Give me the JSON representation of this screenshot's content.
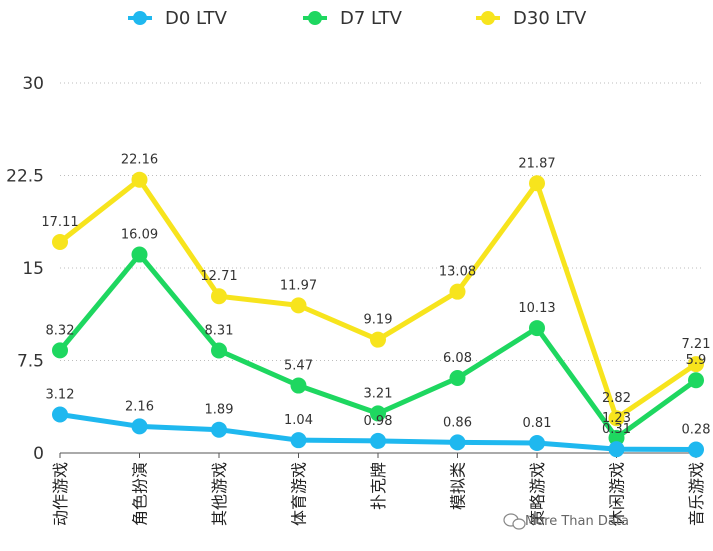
{
  "chart_data": {
    "type": "line",
    "title": "",
    "xlabel": "",
    "ylabel": "",
    "ylim": [
      0,
      30
    ],
    "yticks": [
      "0",
      "7.5",
      "15",
      "22.5",
      "30"
    ],
    "grid": "horizontal dotted",
    "legend_position": "top",
    "categories": [
      "动作游戏",
      "角色扮演",
      "其他游戏",
      "体育游戏",
      "扑克牌",
      "模拟类",
      "策略游戏",
      "休闲游戏",
      "音乐游戏"
    ],
    "series": [
      {
        "name": "D0 LTV",
        "color": "#1fb8ef",
        "values": [
          3.12,
          2.16,
          1.89,
          1.04,
          0.98,
          0.86,
          0.81,
          0.31,
          0.28
        ],
        "labels": [
          "3.12",
          "2.16",
          "1.89",
          "1.04",
          "0.98",
          "0.86",
          "0.81",
          "0.31",
          "0.28"
        ]
      },
      {
        "name": "D7 LTV",
        "color": "#1ed760",
        "values": [
          8.32,
          16.09,
          8.31,
          5.47,
          3.21,
          6.08,
          10.13,
          1.23,
          5.9
        ],
        "labels": [
          "8.32",
          "16.09",
          "8.31",
          "5.47",
          "3.21",
          "6.08",
          "10.13",
          "1.23",
          "5.9"
        ]
      },
      {
        "name": "D30 LTV",
        "color": "#f7e41d",
        "values": [
          17.11,
          22.16,
          12.71,
          11.97,
          9.19,
          13.08,
          21.87,
          2.82,
          7.21
        ],
        "labels": [
          "17.11",
          "22.16",
          "12.71",
          "11.97",
          "9.19",
          "13.08",
          "21.87",
          "2.82",
          "7.21"
        ]
      }
    ]
  },
  "watermark": {
    "icon": "wechat-icon",
    "text": "More Than Data"
  }
}
